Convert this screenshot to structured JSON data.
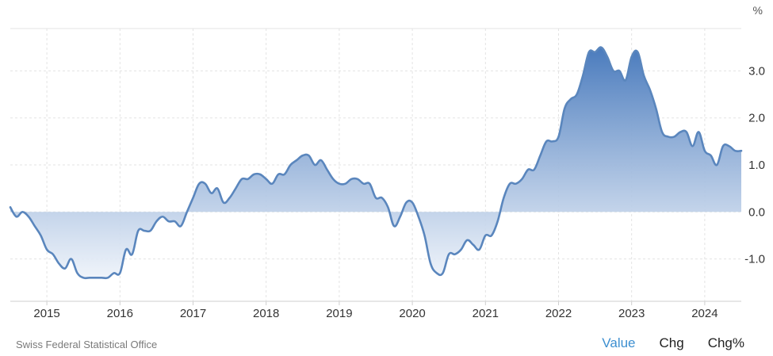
{
  "source": "Swiss Federal Statistical Office",
  "tabs": [
    {
      "label": "Value",
      "active": true
    },
    {
      "label": "Chg",
      "active": false
    },
    {
      "label": "Chg%",
      "active": false
    }
  ],
  "colors": {
    "line": "#5a86bd",
    "fill_top": "#4a7bbd",
    "fill_bottom": "#eef3fa",
    "grid": "#e3e3e3",
    "tab_active": "#3d8fd0"
  },
  "chart_data": {
    "type": "area",
    "unit": "%",
    "x_tick_labels": [
      "2015",
      "2016",
      "2017",
      "2018",
      "2019",
      "2020",
      "2021",
      "2022",
      "2023",
      "2024"
    ],
    "y_tick_labels": [
      "-1.0",
      "0.0",
      "1.0",
      "2.0",
      "3.0"
    ],
    "y_ticks": [
      -1,
      0,
      1,
      2,
      3
    ],
    "xlim": [
      "2014-07",
      "2024-07"
    ],
    "ylim": [
      -1.9,
      3.9
    ],
    "grid": true,
    "series": [
      {
        "x": [
          "2014-07",
          "2014-08",
          "2014-09",
          "2014-10",
          "2014-11",
          "2014-12",
          "2015-01",
          "2015-02",
          "2015-03",
          "2015-04",
          "2015-05",
          "2015-06",
          "2015-07",
          "2015-08",
          "2015-09",
          "2015-10",
          "2015-11",
          "2015-12",
          "2016-01",
          "2016-02",
          "2016-03",
          "2016-04",
          "2016-05",
          "2016-06",
          "2016-07",
          "2016-08",
          "2016-09",
          "2016-10",
          "2016-11",
          "2016-12",
          "2017-01",
          "2017-02",
          "2017-03",
          "2017-04",
          "2017-05",
          "2017-06",
          "2017-07",
          "2017-08",
          "2017-09",
          "2017-10",
          "2017-11",
          "2017-12",
          "2018-01",
          "2018-02",
          "2018-03",
          "2018-04",
          "2018-05",
          "2018-06",
          "2018-07",
          "2018-08",
          "2018-09",
          "2018-10",
          "2018-11",
          "2018-12",
          "2019-01",
          "2019-02",
          "2019-03",
          "2019-04",
          "2019-05",
          "2019-06",
          "2019-07",
          "2019-08",
          "2019-09",
          "2019-10",
          "2019-11",
          "2019-12",
          "2020-01",
          "2020-02",
          "2020-03",
          "2020-04",
          "2020-05",
          "2020-06",
          "2020-07",
          "2020-08",
          "2020-09",
          "2020-10",
          "2020-11",
          "2020-12",
          "2021-01",
          "2021-02",
          "2021-03",
          "2021-04",
          "2021-05",
          "2021-06",
          "2021-07",
          "2021-08",
          "2021-09",
          "2021-10",
          "2021-11",
          "2021-12",
          "2022-01",
          "2022-02",
          "2022-03",
          "2022-04",
          "2022-05",
          "2022-06",
          "2022-07",
          "2022-08",
          "2022-09",
          "2022-10",
          "2022-11",
          "2022-12",
          "2023-01",
          "2023-02",
          "2023-03",
          "2023-04",
          "2023-05",
          "2023-06",
          "2023-07",
          "2023-08",
          "2023-09",
          "2023-10",
          "2023-11",
          "2023-12",
          "2024-01",
          "2024-02",
          "2024-03",
          "2024-04",
          "2024-05",
          "2024-06",
          "2024-07"
        ],
        "values": [
          0.1,
          -0.1,
          0.0,
          -0.1,
          -0.3,
          -0.5,
          -0.8,
          -0.9,
          -1.1,
          -1.2,
          -1.0,
          -1.3,
          -1.4,
          -1.4,
          -1.4,
          -1.4,
          -1.4,
          -1.3,
          -1.3,
          -0.8,
          -0.9,
          -0.4,
          -0.4,
          -0.4,
          -0.2,
          -0.1,
          -0.2,
          -0.2,
          -0.3,
          0.0,
          0.3,
          0.6,
          0.6,
          0.4,
          0.5,
          0.2,
          0.3,
          0.5,
          0.7,
          0.7,
          0.8,
          0.8,
          0.7,
          0.6,
          0.8,
          0.8,
          1.0,
          1.1,
          1.2,
          1.2,
          1.0,
          1.1,
          0.9,
          0.7,
          0.6,
          0.6,
          0.7,
          0.7,
          0.6,
          0.6,
          0.3,
          0.3,
          0.1,
          -0.3,
          -0.1,
          0.2,
          0.2,
          -0.1,
          -0.5,
          -1.1,
          -1.3,
          -1.3,
          -0.9,
          -0.9,
          -0.8,
          -0.6,
          -0.7,
          -0.8,
          -0.5,
          -0.5,
          -0.2,
          0.3,
          0.6,
          0.6,
          0.7,
          0.9,
          0.9,
          1.2,
          1.5,
          1.5,
          1.6,
          2.2,
          2.4,
          2.5,
          2.9,
          3.4,
          3.4,
          3.5,
          3.3,
          3.0,
          3.0,
          2.8,
          3.3,
          3.4,
          2.9,
          2.6,
          2.2,
          1.7,
          1.6,
          1.6,
          1.7,
          1.7,
          1.4,
          1.7,
          1.3,
          1.2,
          1.0,
          1.4,
          1.4,
          1.3,
          1.3
        ]
      }
    ]
  }
}
